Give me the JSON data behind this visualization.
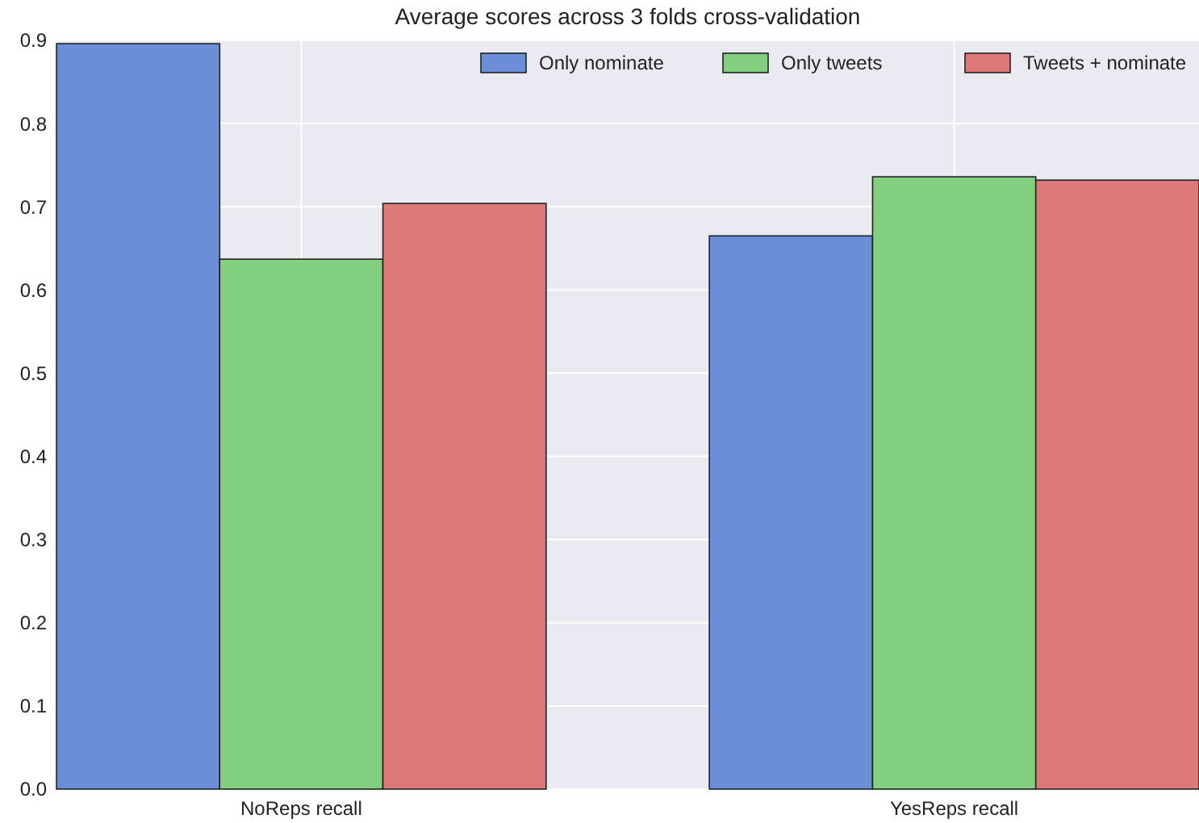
{
  "chart_data": {
    "type": "bar",
    "title": "Average scores across 3 folds cross-validation",
    "categories": [
      "NoReps recall",
      "YesReps recall"
    ],
    "series": [
      {
        "name": "Only nominate",
        "color": "#6a8fd8",
        "values": [
          0.896,
          0.665
        ]
      },
      {
        "name": "Only tweets",
        "color": "#82d07f",
        "values": [
          0.637,
          0.736
        ]
      },
      {
        "name": "Tweets + nominate",
        "color": "#dc7878",
        "values": [
          0.704,
          0.732
        ]
      }
    ],
    "ylim": [
      0,
      0.9
    ],
    "yticks": [
      {
        "value": 0,
        "label": "0.0"
      },
      0.1,
      0.2,
      0.3,
      0.4,
      0.5,
      0.6,
      0.7,
      0.8,
      0.9
    ],
    "grid": true,
    "legend": "top right"
  }
}
